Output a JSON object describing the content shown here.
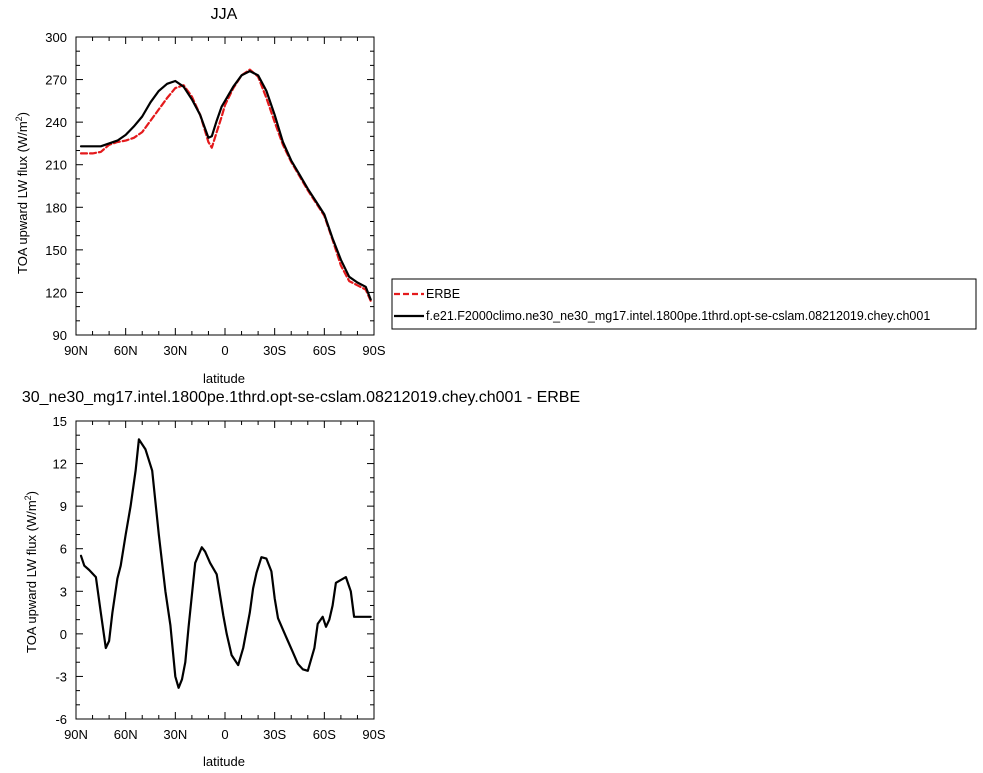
{
  "chart_data": [
    {
      "type": "line",
      "title": "JJA",
      "xlabel": "latitude",
      "ylabel_main": "TOA upward LW flux (W/m",
      "ylabel_sup": "2",
      "ylabel_close": ")",
      "xlim": [
        90,
        -90
      ],
      "ylim": [
        90,
        300
      ],
      "xticks": [
        {
          "value": 90,
          "label": "90N"
        },
        {
          "value": 60,
          "label": "60N"
        },
        {
          "value": 30,
          "label": "30N"
        },
        {
          "value": 0,
          "label": "0"
        },
        {
          "value": -30,
          "label": "30S"
        },
        {
          "value": -60,
          "label": "60S"
        },
        {
          "value": -90,
          "label": "90S"
        }
      ],
      "yticks": [
        {
          "value": 300,
          "label": "300"
        },
        {
          "value": 270,
          "label": "270"
        },
        {
          "value": 240,
          "label": "240"
        },
        {
          "value": 210,
          "label": "210"
        },
        {
          "value": 180,
          "label": "180"
        },
        {
          "value": 150,
          "label": "150"
        },
        {
          "value": 120,
          "label": "120"
        },
        {
          "value": 90,
          "label": "90"
        }
      ],
      "legend_position": "right",
      "series": [
        {
          "name": "ERBE",
          "color": "#e41a1c",
          "dash": true,
          "x": [
            87,
            80,
            75,
            70,
            65,
            60,
            55,
            50,
            45,
            40,
            35,
            30,
            25,
            20,
            15,
            10,
            8,
            5,
            2,
            0,
            -5,
            -10,
            -15,
            -20,
            -25,
            -30,
            -35,
            -40,
            -45,
            -50,
            -55,
            -60,
            -65,
            -70,
            -75,
            -80,
            -85,
            -88
          ],
          "y": [
            218,
            218,
            219,
            224,
            226,
            227,
            229,
            233,
            241,
            249,
            257,
            264,
            266,
            258,
            245,
            226,
            222,
            233,
            244,
            252,
            264,
            273,
            277,
            272,
            257,
            240,
            224,
            212,
            202,
            192,
            183,
            174,
            157,
            139,
            128,
            125,
            122,
            114
          ]
        },
        {
          "name": "f.e21.F2000climo.ne30_ne30_mg17.intel.1800pe.1thrd.opt-se-cslam.08212019.chey.ch001",
          "color": "#000000",
          "dash": false,
          "x": [
            87,
            80,
            75,
            70,
            65,
            60,
            55,
            50,
            45,
            40,
            35,
            30,
            25,
            20,
            15,
            10,
            8,
            5,
            2,
            0,
            -5,
            -10,
            -15,
            -20,
            -25,
            -30,
            -35,
            -40,
            -45,
            -50,
            -55,
            -60,
            -65,
            -70,
            -75,
            -80,
            -85,
            -88
          ],
          "y": [
            223,
            223,
            223,
            225,
            227,
            231,
            237,
            244,
            254,
            262,
            267,
            269,
            265,
            256,
            245,
            229,
            230,
            241,
            251,
            255,
            265,
            273,
            276,
            273,
            262,
            245,
            226,
            213,
            203,
            193,
            184,
            175,
            158,
            143,
            131,
            127,
            124,
            115
          ]
        }
      ]
    },
    {
      "type": "line",
      "title": "30_ne30_mg17.intel.1800pe.1thrd.opt-se-cslam.08212019.chey.ch001 - ERBE",
      "xlabel": "latitude",
      "ylabel_main": "TOA upward LW flux (W/m",
      "ylabel_sup": "2",
      "ylabel_close": ")",
      "xlim": [
        90,
        -90
      ],
      "ylim": [
        -6,
        15
      ],
      "xticks": [
        {
          "value": 90,
          "label": "90N"
        },
        {
          "value": 60,
          "label": "60N"
        },
        {
          "value": 30,
          "label": "30N"
        },
        {
          "value": 0,
          "label": "0"
        },
        {
          "value": -30,
          "label": "30S"
        },
        {
          "value": -60,
          "label": "60S"
        },
        {
          "value": -90,
          "label": "90S"
        }
      ],
      "yticks": [
        {
          "value": 15,
          "label": "15"
        },
        {
          "value": 12,
          "label": "12"
        },
        {
          "value": 9,
          "label": "9"
        },
        {
          "value": 6,
          "label": "6"
        },
        {
          "value": 3,
          "label": "3"
        },
        {
          "value": 0,
          "label": "0"
        },
        {
          "value": -3,
          "label": "-3"
        },
        {
          "value": -6,
          "label": "-6"
        }
      ],
      "series": [
        {
          "color": "#000000",
          "dash": false,
          "x": [
            87,
            85,
            82,
            78,
            75,
            72,
            70,
            68,
            65,
            63,
            60,
            57,
            54,
            52,
            48,
            44,
            40,
            36,
            33,
            30,
            28,
            26,
            24,
            22,
            18,
            14,
            12,
            9,
            5,
            1,
            -1,
            -4,
            -8,
            -11,
            -15,
            -17,
            -19,
            -22,
            -25,
            -28,
            -30,
            -32,
            -35,
            -38,
            -41,
            -44,
            -47,
            -50,
            -54,
            -56,
            -59,
            -61,
            -63,
            -65,
            -67,
            -70,
            -73,
            -76,
            -78,
            -80,
            -83,
            -85,
            -88
          ],
          "y": [
            5.5,
            4.8,
            4.5,
            4.0,
            1.5,
            -1.0,
            -0.5,
            1.5,
            3.9,
            4.8,
            7.0,
            9.0,
            11.5,
            13.7,
            13.0,
            11.5,
            7.0,
            3.0,
            0.6,
            -3.0,
            -3.8,
            -3.2,
            -2.0,
            0.5,
            5.0,
            6.1,
            5.8,
            5.0,
            4.2,
            1.3,
            0.0,
            -1.5,
            -2.2,
            -1.0,
            1.5,
            3.2,
            4.3,
            5.4,
            5.3,
            4.4,
            2.5,
            1.1,
            0.3,
            -0.5,
            -1.3,
            -2.1,
            -2.5,
            -2.6,
            -1.0,
            0.7,
            1.2,
            0.5,
            1.0,
            2.0,
            3.6,
            3.8,
            4.0,
            3.0,
            1.2,
            1.2,
            1.2,
            1.2,
            1.2
          ]
        }
      ]
    }
  ]
}
